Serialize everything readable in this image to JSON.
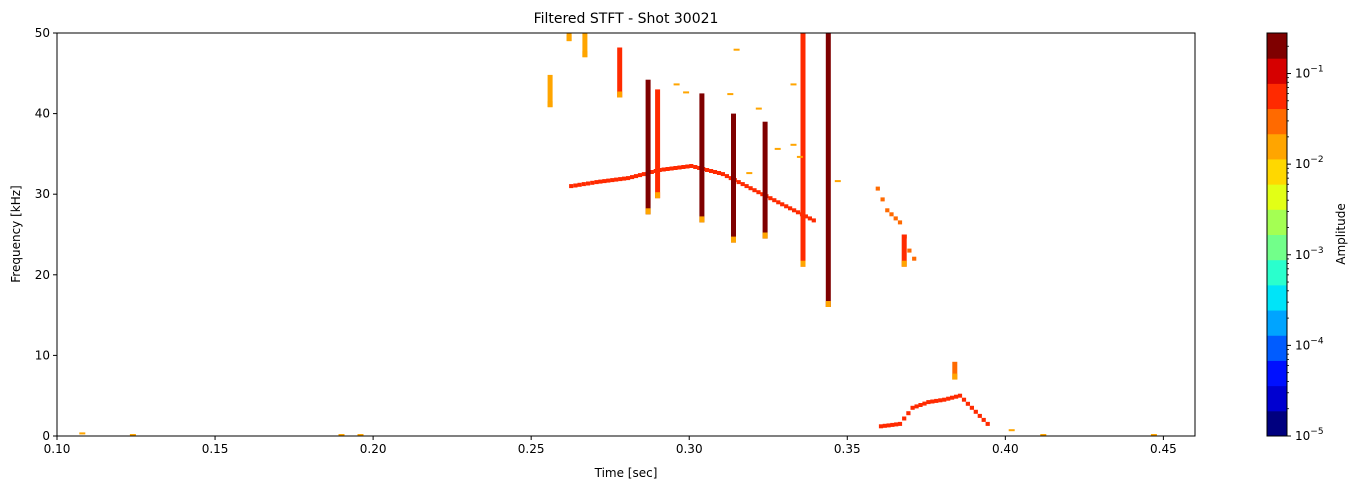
{
  "chart_data": {
    "type": "heatmap",
    "title": "Filtered STFT - Shot 30021",
    "xlabel": "Time [sec]",
    "ylabel": "Frequency [kHz]",
    "xlim": [
      0.1,
      0.46
    ],
    "ylim": [
      0,
      50
    ],
    "x_ticks": [
      0.1,
      0.15,
      0.2,
      0.25,
      0.3,
      0.35,
      0.4,
      0.45
    ],
    "x_tick_labels": [
      "0.10",
      "0.15",
      "0.20",
      "0.25",
      "0.30",
      "0.35",
      "0.40",
      "0.45"
    ],
    "y_ticks": [
      0,
      10,
      20,
      30,
      40,
      50
    ],
    "y_tick_labels": [
      "0",
      "10",
      "20",
      "30",
      "40",
      "50"
    ],
    "grid": false,
    "colorbar": {
      "label": "Amplitude",
      "scale": "log",
      "range": [
        1e-05,
        0.28
      ],
      "ticks": [
        {
          "value": 1e-05,
          "base": "10",
          "exp": "−5"
        },
        {
          "value": 0.0001,
          "base": "10",
          "exp": "−4"
        },
        {
          "value": 0.001,
          "base": "10",
          "exp": "−3"
        },
        {
          "value": 0.01,
          "base": "10",
          "exp": "−2"
        },
        {
          "value": 0.1,
          "base": "10",
          "exp": "−1"
        }
      ],
      "levels": [
        "#00007f",
        "#0000d0",
        "#0010ff",
        "#005cff",
        "#00a4ff",
        "#00e4f8",
        "#2affcd",
        "#72ff8a",
        "#a4ff53",
        "#e2ff16",
        "#ffd800",
        "#ffa500",
        "#ff6a00",
        "#ff2a00",
        "#d60000",
        "#7f0000"
      ],
      "colormap": "jet"
    },
    "ridges": [
      {
        "points": [
          [
            0.262,
            31.0
          ],
          [
            0.27,
            31.5
          ],
          [
            0.28,
            32.0
          ],
          [
            0.29,
            33.0
          ],
          [
            0.3,
            33.5
          ],
          [
            0.31,
            32.5
          ],
          [
            0.32,
            30.5
          ],
          [
            0.33,
            28.5
          ],
          [
            0.34,
            26.5
          ]
        ],
        "level": "high"
      },
      {
        "points": [
          [
            0.36,
            1.2
          ],
          [
            0.366,
            1.5
          ],
          [
            0.37,
            3.5
          ],
          [
            0.375,
            4.2
          ],
          [
            0.38,
            4.5
          ],
          [
            0.385,
            5.0
          ],
          [
            0.39,
            3.0
          ],
          [
            0.395,
            1.0
          ]
        ],
        "level": "high"
      },
      {
        "points": [
          [
            0.359,
            30.7
          ],
          [
            0.362,
            28.0
          ],
          [
            0.366,
            26.5
          ],
          [
            0.369,
            23.0
          ],
          [
            0.372,
            21.0
          ]
        ],
        "level": "mid"
      }
    ],
    "streaks": [
      {
        "t": 0.256,
        "f": [
          40.8,
          44.8
        ],
        "level": "low"
      },
      {
        "t": 0.262,
        "f": [
          49.0,
          50.0
        ],
        "level": "low"
      },
      {
        "t": 0.267,
        "f": [
          47.0,
          50.0
        ],
        "level": "low"
      },
      {
        "t": 0.278,
        "f": [
          42.0,
          48.2
        ],
        "level": "high"
      },
      {
        "t": 0.287,
        "f": [
          27.5,
          44.2
        ],
        "level": "peak"
      },
      {
        "t": 0.29,
        "f": [
          29.5,
          43.0
        ],
        "level": "high"
      },
      {
        "t": 0.304,
        "f": [
          26.5,
          42.5
        ],
        "level": "peak"
      },
      {
        "t": 0.314,
        "f": [
          24.0,
          40.0
        ],
        "level": "peak"
      },
      {
        "t": 0.324,
        "f": [
          24.5,
          39.0
        ],
        "level": "peak"
      },
      {
        "t": 0.336,
        "f": [
          21.0,
          50.0
        ],
        "level": "high"
      },
      {
        "t": 0.344,
        "f": [
          16.0,
          50.0
        ],
        "level": "peak"
      },
      {
        "t": 0.368,
        "f": [
          21.0,
          25.0
        ],
        "level": "high"
      },
      {
        "t": 0.384,
        "f": [
          7.0,
          9.2
        ],
        "level": "mid"
      }
    ],
    "specks": [
      {
        "t": 0.108,
        "f": 0.2
      },
      {
        "t": 0.124,
        "f": 0.0
      },
      {
        "t": 0.19,
        "f": 0.0
      },
      {
        "t": 0.196,
        "f": 0.0
      },
      {
        "t": 0.402,
        "f": 0.6
      },
      {
        "t": 0.412,
        "f": 0.0
      },
      {
        "t": 0.447,
        "f": 0.0
      },
      {
        "t": 0.296,
        "f": 43.5
      },
      {
        "t": 0.299,
        "f": 42.5
      },
      {
        "t": 0.313,
        "f": 42.3
      },
      {
        "t": 0.322,
        "f": 40.5
      },
      {
        "t": 0.315,
        "f": 47.8
      },
      {
        "t": 0.333,
        "f": 43.5
      },
      {
        "t": 0.319,
        "f": 32.5
      },
      {
        "t": 0.328,
        "f": 35.5
      },
      {
        "t": 0.333,
        "f": 36.0
      },
      {
        "t": 0.335,
        "f": 34.5
      },
      {
        "t": 0.347,
        "f": 31.5
      }
    ]
  }
}
